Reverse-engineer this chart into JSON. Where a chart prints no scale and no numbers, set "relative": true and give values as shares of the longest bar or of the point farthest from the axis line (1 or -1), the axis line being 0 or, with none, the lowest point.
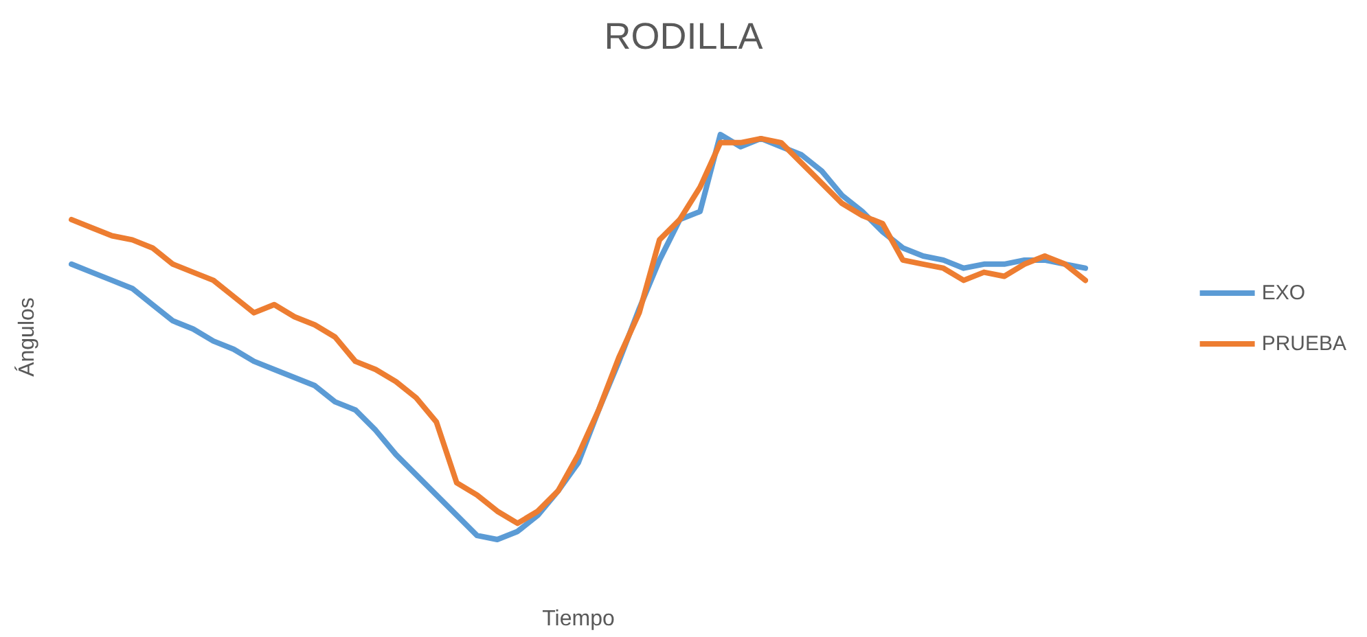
{
  "chart_data": {
    "type": "line",
    "title": "RODILLA",
    "xlabel": "Tiempo",
    "ylabel": "Ángulos",
    "relative": true,
    "legend": "right",
    "grid": false,
    "marker": "none",
    "line_style": "solid",
    "categories": [
      null,
      null,
      null,
      null,
      null,
      null,
      null,
      null,
      null,
      null,
      null,
      null,
      null,
      null,
      null,
      null,
      null,
      null,
      null,
      null,
      null,
      null,
      null,
      null,
      null,
      null,
      null,
      null,
      null,
      null,
      null,
      null,
      null,
      null,
      null,
      null,
      null,
      null,
      null,
      null,
      null,
      null,
      null,
      null,
      null,
      null,
      null,
      null,
      null,
      null,
      null
    ],
    "series": [
      {
        "name": "EXO",
        "color": "#5b9bd5",
        "values": [
          0.68,
          0.66,
          0.64,
          0.62,
          0.58,
          0.54,
          0.52,
          0.49,
          0.47,
          0.44,
          0.42,
          0.4,
          0.38,
          0.34,
          0.32,
          0.27,
          0.21,
          0.16,
          0.11,
          0.06,
          0.01,
          0,
          0.02,
          0.06,
          0.12,
          0.19,
          0.32,
          0.44,
          0.57,
          0.69,
          0.79,
          0.81,
          1,
          0.97,
          0.99,
          0.97,
          0.95,
          0.91,
          0.85,
          0.81,
          0.76,
          0.72,
          0.7,
          0.69,
          0.67,
          0.68,
          0.68,
          0.69,
          0.69,
          0.68,
          0.67
        ]
      },
      {
        "name": "PRUEBA",
        "color": "#ed7d31",
        "values": [
          0.79,
          0.77,
          0.75,
          0.74,
          0.72,
          0.68,
          0.66,
          0.64,
          0.6,
          0.56,
          0.58,
          0.55,
          0.53,
          0.5,
          0.44,
          0.42,
          0.39,
          0.35,
          0.29,
          0.14,
          0.11,
          0.07,
          0.04,
          0.07,
          0.12,
          0.21,
          0.32,
          0.45,
          0.56,
          0.74,
          0.79,
          0.87,
          0.98,
          0.98,
          0.99,
          0.98,
          0.93,
          0.88,
          0.83,
          0.8,
          0.78,
          0.69,
          0.68,
          0.67,
          0.64,
          0.66,
          0.65,
          0.68,
          0.7,
          0.68,
          0.64
        ]
      }
    ]
  }
}
